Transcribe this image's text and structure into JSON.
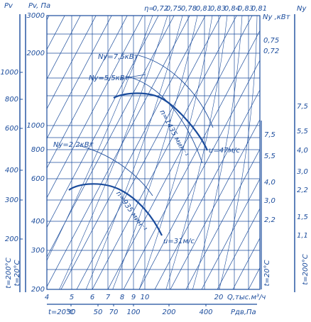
{
  "left_outer_axis": {
    "label": "Pv",
    "ticks": [
      "1000",
      "800",
      "600",
      "400",
      "300",
      "200"
    ],
    "temp": "t=200°C"
  },
  "left_inner_axis": {
    "label": "Pv, Па",
    "ticks": [
      "3000",
      "2000",
      "1000",
      "800",
      "600",
      "400",
      "300",
      "200"
    ],
    "temp": "t=20°C"
  },
  "q_axis": {
    "ticks": [
      "4",
      "5",
      "6",
      "7",
      "8",
      "9",
      "10",
      "20"
    ],
    "label": "Q,тыс.м³/ч"
  },
  "pdv_axis": {
    "temp": "t=20°C",
    "ticks": [
      "30",
      "50",
      "70",
      "100",
      "200",
      "400"
    ],
    "label": "Pдв,Па"
  },
  "efficiency": {
    "label": "η=",
    "ticks": [
      "0,72",
      "0,75",
      "0,78",
      "0,81",
      "0,83",
      "0,84",
      "0,83",
      "0,81"
    ],
    "right": [
      "0,75",
      "0,72"
    ]
  },
  "power_axis_20": {
    "label": "Nу ,кВт",
    "ticks": [
      "7,5",
      "5,5",
      "4,0",
      "3,0",
      "2,2"
    ],
    "temp": "t=20°C"
  },
  "power_axis_200": {
    "label": "Nу",
    "ticks": [
      "7,5",
      "5,5",
      "4,0",
      "3,0",
      "2,2",
      "1,5",
      "1,1"
    ],
    "temp": "t=200°C"
  },
  "curves": {
    "power": [
      "Nу=7,5кВт",
      "Nу=5,5кВт",
      "Nу=2,2кВт"
    ],
    "speed": [
      "n=1435 мин⁻¹",
      "n=935 мин⁻¹"
    ],
    "velocity": [
      "u=47м/с",
      "u=31м/с"
    ]
  }
}
